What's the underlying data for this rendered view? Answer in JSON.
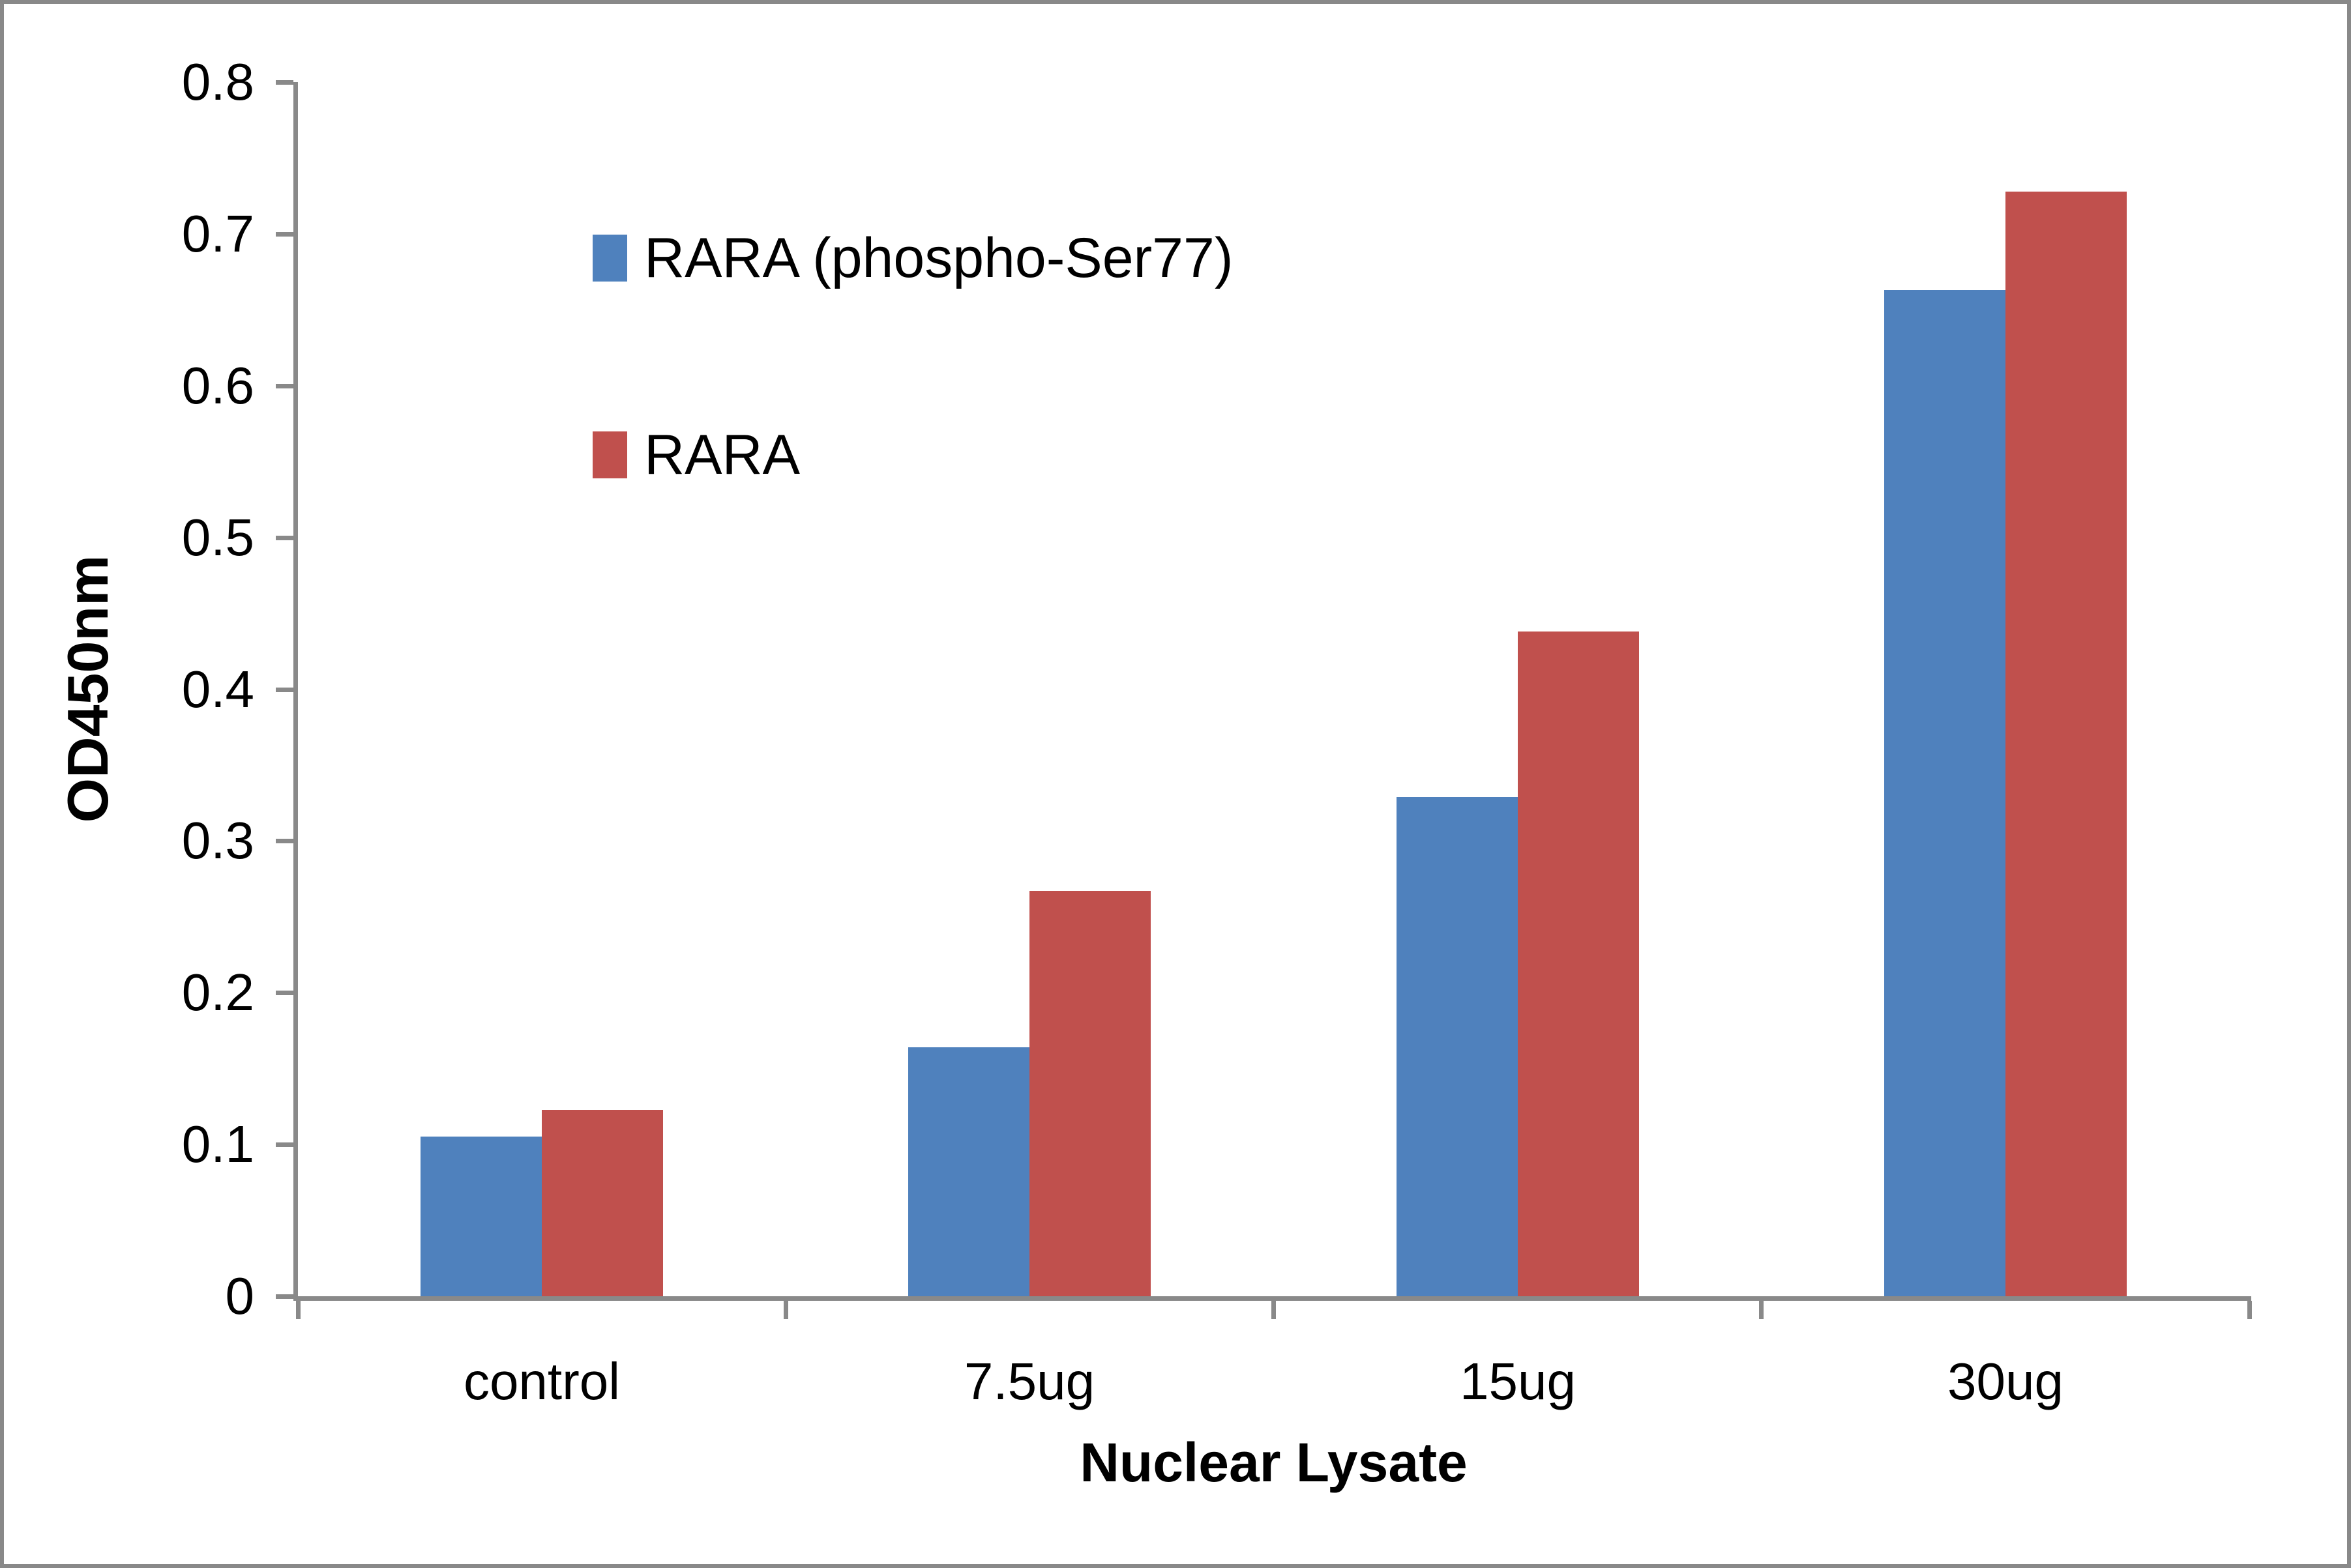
{
  "figure": {
    "background": "#ffffff",
    "border_color": "#898989"
  },
  "chart_data": {
    "type": "bar",
    "title": "",
    "categories": [
      "control",
      "7.5ug",
      "15ug",
      "30ug"
    ],
    "series": [
      {
        "name": "RARA (phospho-Ser77)",
        "color": "#4F81BD",
        "values": [
          0.105,
          0.164,
          0.329,
          0.663
        ]
      },
      {
        "name": "RARA",
        "color": "#C0504D",
        "values": [
          0.123,
          0.267,
          0.438,
          0.728
        ]
      }
    ],
    "xlabel": "Nuclear Lysate",
    "ylabel": "OD450nm",
    "ylim": [
      0,
      0.8
    ],
    "ytick_step": 0.1,
    "ytick_labels": [
      "0",
      "0.1",
      "0.2",
      "0.3",
      "0.4",
      "0.5",
      "0.6",
      "0.7",
      "0.8"
    ],
    "grid": false,
    "legend_position": "upper-left-inside",
    "axis_color": "#898989",
    "text_color": "#000000"
  }
}
